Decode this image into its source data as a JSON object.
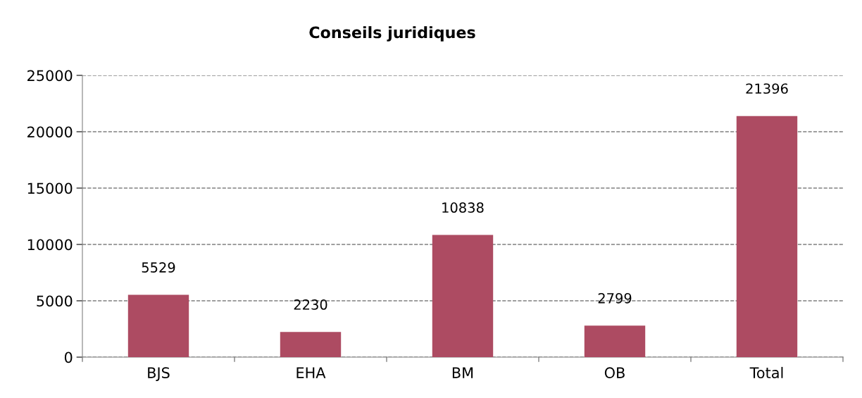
{
  "chart_data": {
    "type": "bar",
    "title": "Conseils juridiques",
    "categories": [
      "BJS",
      "EHA",
      "BM",
      "OB",
      "Total"
    ],
    "values": [
      5529,
      2230,
      10838,
      2799,
      21396
    ],
    "color": "#ad4b62",
    "ylim": [
      0,
      25000
    ],
    "yticks": [
      0,
      5000,
      10000,
      15000,
      20000,
      25000
    ],
    "grid": "y",
    "data_labels": true,
    "legend": false
  }
}
